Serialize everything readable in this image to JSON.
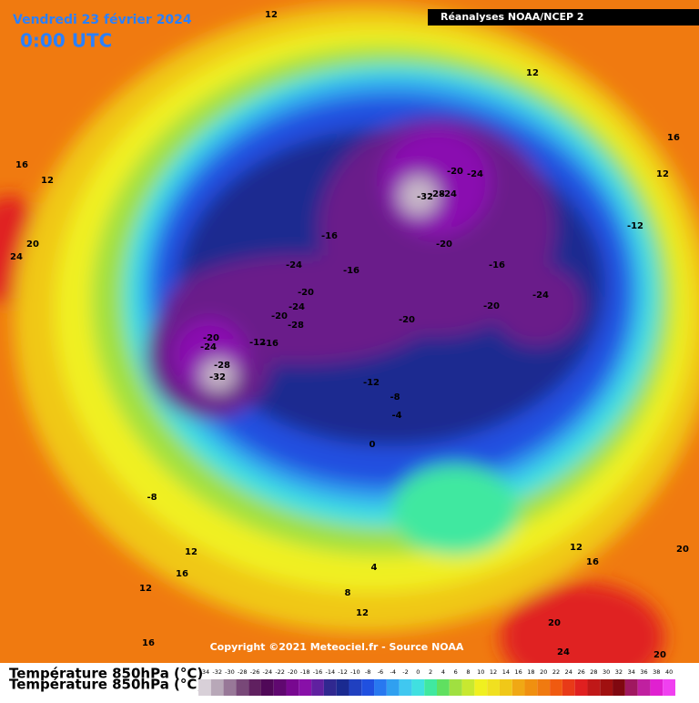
{
  "header": {
    "date": "Vendredi 23 février 2024",
    "time": "0:00 UTC",
    "source": "Réanalyses NOAA/NCEP 2"
  },
  "copyright": "Copyright ©2021 Meteociel.fr - Source NOAA",
  "field_label": "Température 850hPa (°C)",
  "contour_labels": [
    12,
    12,
    16,
    12,
    16,
    12,
    20,
    24,
    -12,
    -20,
    -24,
    -32,
    -28,
    -24,
    -16,
    -20,
    -16,
    -24,
    -16,
    -24,
    -20,
    -24,
    -20,
    -20,
    -28,
    -20,
    -20,
    -24,
    -12,
    -16,
    -28,
    -32,
    -12,
    -8,
    -4,
    0,
    -8,
    12,
    16,
    12,
    4,
    8,
    12,
    16,
    12,
    16,
    20,
    20,
    24,
    20
  ],
  "legend": {
    "values": [
      -34,
      -32,
      -30,
      -28,
      -26,
      -24,
      -22,
      -20,
      -18,
      -16,
      -14,
      -12,
      -10,
      -8,
      -6,
      -4,
      -2,
      0,
      2,
      4,
      6,
      8,
      10,
      12,
      14,
      16,
      18,
      20,
      22,
      24,
      26,
      28,
      30,
      32,
      34,
      36,
      38,
      40
    ],
    "colors": [
      "#d8d0d8",
      "#b8a8b8",
      "#987898",
      "#784878",
      "#602060",
      "#500858",
      "#600870",
      "#780890",
      "#8810a8",
      "#6020a0",
      "#302890",
      "#1a2a90",
      "#2040c0",
      "#2050e0",
      "#2878f0",
      "#30a0f0",
      "#40c8f0",
      "#40e0e0",
      "#40e8a0",
      "#60e060",
      "#a0e040",
      "#c8e830",
      "#f0f020",
      "#f0e020",
      "#f0c818",
      "#f0a814",
      "#f09010",
      "#f07a10",
      "#f05a10",
      "#e83a18",
      "#e02020",
      "#c01818",
      "#a01010",
      "#800810",
      "#a01860",
      "#c020a0",
      "#e020d0",
      "#f040f0"
    ]
  }
}
